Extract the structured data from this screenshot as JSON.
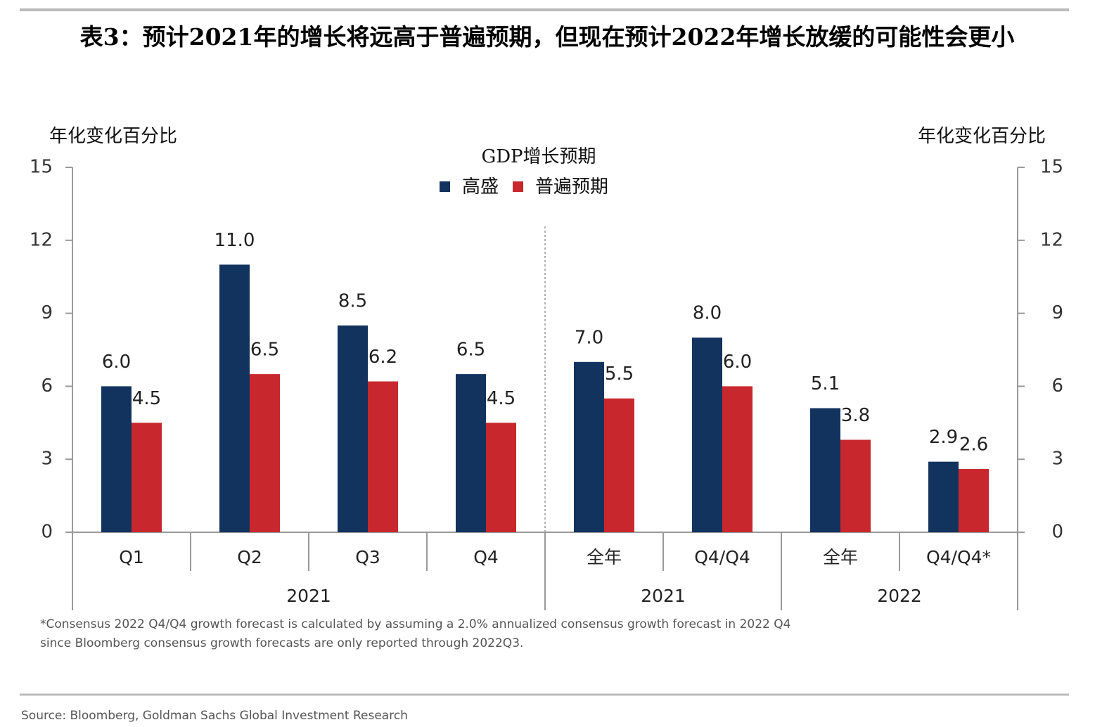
{
  "chart_data": {
    "type": "bar",
    "title": "表3：预计2021年的增长将远高于普遍预期，但现在预计2022年增长放缓的可能性会更小",
    "legend_title": "GDP增长预期",
    "y_label": "年化变化百分比",
    "y2_label": "年化变化百分比",
    "groups": [
      {
        "name": "2021",
        "categories": [
          "Q1",
          "Q2",
          "Q3",
          "Q4"
        ]
      },
      {
        "name": "2021",
        "categories": [
          "全年",
          "Q4/Q4"
        ]
      },
      {
        "name": "2022",
        "categories": [
          "全年",
          "Q4/Q4*"
        ]
      }
    ],
    "series": [
      {
        "name": "高盛",
        "color": "#11335e",
        "values": [
          6.0,
          11.0,
          8.5,
          6.5,
          7.0,
          8.0,
          5.1,
          2.9
        ],
        "value_labels": [
          "6.0",
          "11.0",
          "8.5",
          "6.5",
          "7.0",
          "8.0",
          "5.1",
          "2.9"
        ]
      },
      {
        "name": "普遍预期",
        "color": "#c8282d",
        "values": [
          4.5,
          6.5,
          6.2,
          4.5,
          5.5,
          6.0,
          3.8,
          2.6
        ],
        "value_labels": [
          "4.5",
          "6.5",
          "6.2",
          "4.5",
          "5.5",
          "6.0",
          "3.8",
          "2.6"
        ]
      }
    ],
    "ylim": [
      0,
      15
    ],
    "yticks": [
      0,
      3,
      6,
      9,
      12,
      15
    ],
    "y2lim": [
      0,
      15
    ],
    "y2ticks": [
      0,
      3,
      6,
      9,
      12,
      15
    ],
    "footnote": [
      "*Consensus 2022 Q4/Q4 growth forecast is calculated by assuming a 2.0% annualized consensus growth forecast in 2022 Q4",
      "since Bloomberg consensus growth forecasts are only reported through 2022Q3."
    ],
    "source": "Source: Bloomberg, Goldman Sachs Global Investment Research"
  }
}
